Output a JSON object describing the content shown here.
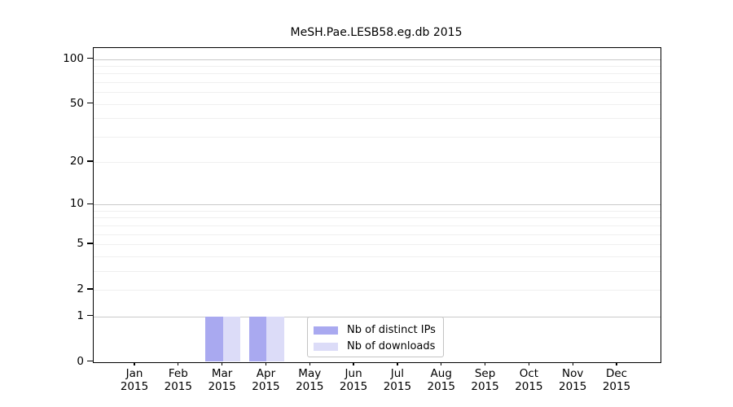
{
  "title": "MeSH.Pae.LESB58.eg.db 2015",
  "chart_data": {
    "type": "bar",
    "title": "MeSH.Pae.LESB58.eg.db 2015",
    "categories": [
      "Jan",
      "Feb",
      "Mar",
      "Apr",
      "May",
      "Jun",
      "Jul",
      "Aug",
      "Sep",
      "Oct",
      "Nov",
      "Dec"
    ],
    "year_label": "2015",
    "series": [
      {
        "name": "Nb of distinct IPs",
        "color": "#a9a9f0",
        "values": [
          0,
          0,
          1,
          1,
          0,
          0,
          0,
          0,
          0,
          0,
          0,
          0
        ]
      },
      {
        "name": "Nb of downloads",
        "color": "#dcdcf8",
        "values": [
          0,
          0,
          1,
          1,
          0,
          0,
          0,
          0,
          0,
          0,
          0,
          0
        ]
      }
    ],
    "y_axis": {
      "scale": "log1p",
      "tick_values": [
        0,
        1,
        2,
        5,
        10,
        20,
        50,
        100
      ],
      "major_gridlines": [
        1,
        10,
        100
      ],
      "minor_gridlines": [
        2,
        3,
        4,
        5,
        6,
        7,
        8,
        9,
        20,
        30,
        40,
        50,
        60,
        70,
        80,
        90
      ],
      "range": [
        0,
        117
      ]
    },
    "legend": {
      "position": "inside-bottom-center",
      "items": [
        "Nb of distinct IPs",
        "Nb of downloads"
      ]
    },
    "grid": "horizontal",
    "xlabel": "",
    "ylabel": ""
  },
  "colors": {
    "background": "#ffffff",
    "axis": "#000000",
    "grid_major": "#c9c9c9",
    "grid_minor": "#efefef",
    "legend_border": "#c3c3c3",
    "distinct_ips_bar": "#a9a9f0",
    "downloads_bar": "#dcdcf8"
  }
}
